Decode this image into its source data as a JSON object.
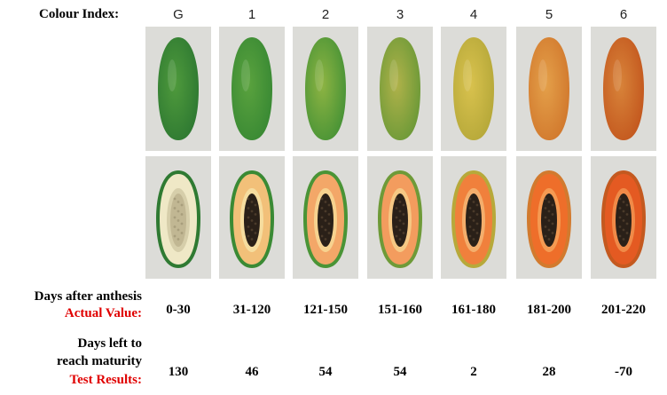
{
  "labels": {
    "colour_index": "Colour Index:",
    "days_after_anthesis": "Days after anthesis",
    "actual_value": "Actual Value:",
    "days_left_line1": "Days left to",
    "days_left_line2": "reach maturity",
    "test_results": "Test Results:"
  },
  "stages": [
    {
      "index": "G",
      "days_after_anthesis": "0-30",
      "days_left": "130",
      "skin_color": "#2f7a32",
      "skin_highlight": "#4f9a3c",
      "flesh_color": "#efe8c6",
      "cavity_color": "#d6ceaa",
      "seed_color": "#bfb590"
    },
    {
      "index": "1",
      "days_after_anthesis": "31-120",
      "days_left": "46",
      "skin_color": "#3a8a34",
      "skin_highlight": "#5aa23e",
      "flesh_color": "#f2c079",
      "cavity_color": "#f6dd9f",
      "seed_color": "#2a2018"
    },
    {
      "index": "2",
      "days_after_anthesis": "121-150",
      "days_left": "54",
      "skin_color": "#4a9436",
      "skin_highlight": "#8eb443",
      "flesh_color": "#f3a768",
      "cavity_color": "#f7d28f",
      "seed_color": "#2a2018"
    },
    {
      "index": "3",
      "days_after_anthesis": "151-160",
      "days_left": "54",
      "skin_color": "#6e9a38",
      "skin_highlight": "#b0b24a",
      "flesh_color": "#f39c5e",
      "cavity_color": "#f6c884",
      "seed_color": "#2a2018"
    },
    {
      "index": "4",
      "days_after_anthesis": "161-180",
      "days_left": "2",
      "skin_color": "#b7a93a",
      "skin_highlight": "#d9c24e",
      "flesh_color": "#f0803c",
      "cavity_color": "#f4ae6c",
      "seed_color": "#2a2018"
    },
    {
      "index": "5",
      "days_after_anthesis": "181-200",
      "days_left": "28",
      "skin_color": "#d27a2e",
      "skin_highlight": "#e4a04a",
      "flesh_color": "#ee6e2a",
      "cavity_color": "#f59a52",
      "seed_color": "#2a2018"
    },
    {
      "index": "6",
      "days_after_anthesis": "201-220",
      "days_left": "-70",
      "skin_color": "#c4591f",
      "skin_highlight": "#d8843a",
      "flesh_color": "#e45a22",
      "cavity_color": "#f08a48",
      "seed_color": "#2a2018"
    }
  ]
}
